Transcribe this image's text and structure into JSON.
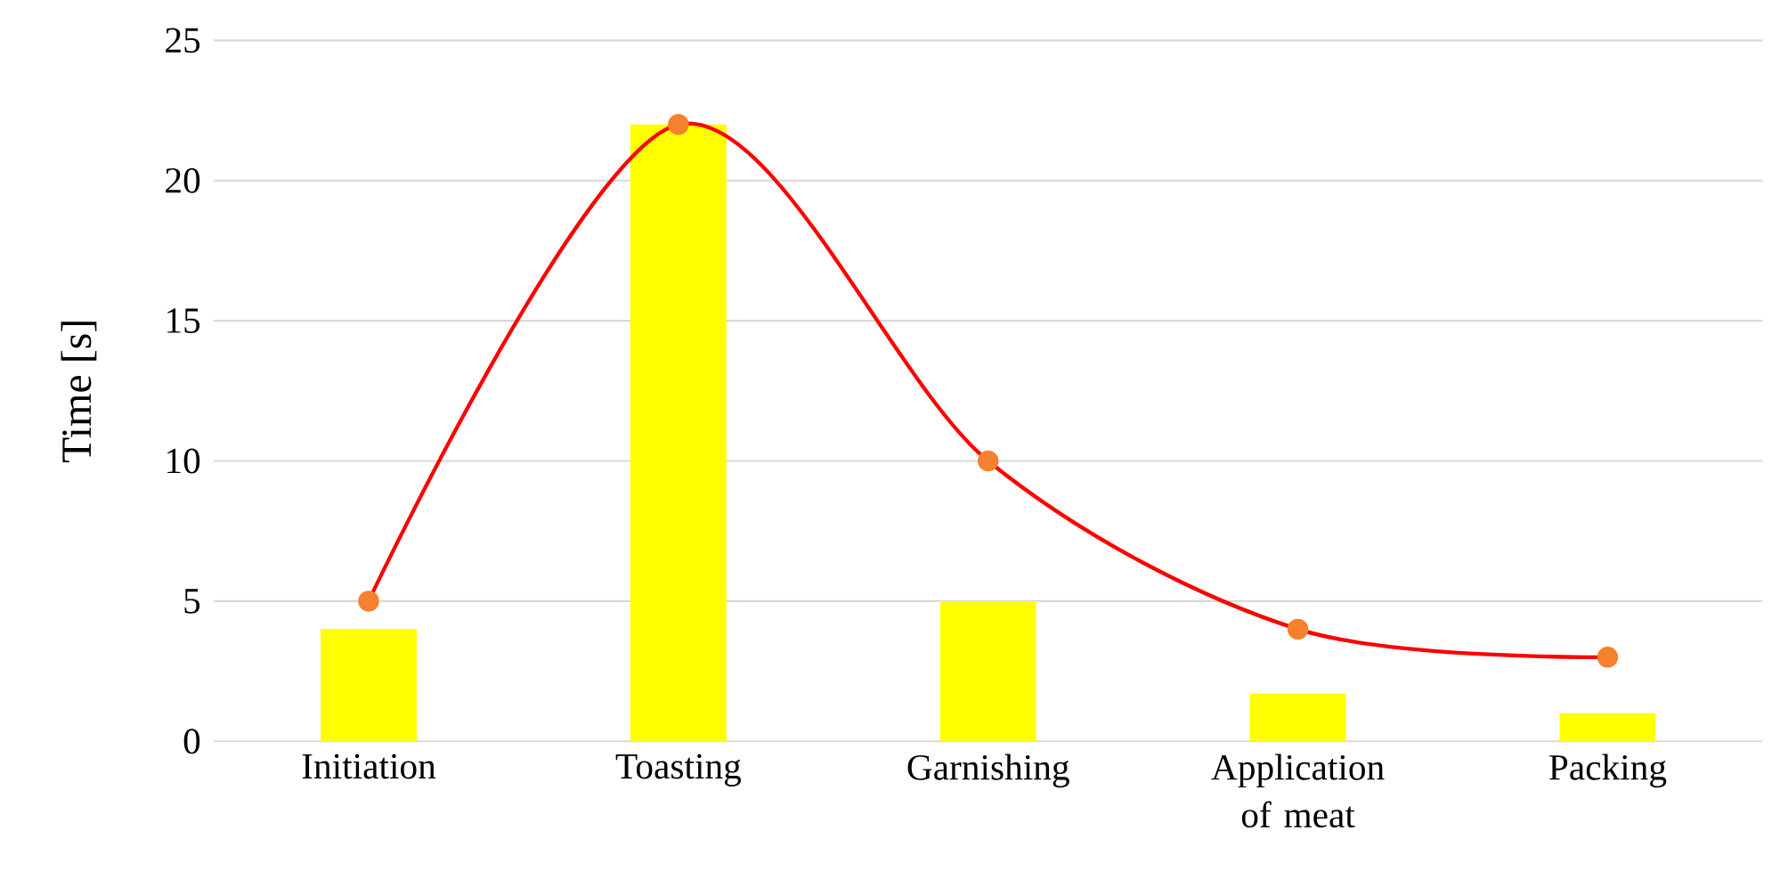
{
  "chart_data": {
    "type": "bar",
    "ylabel": "Time [s]",
    "categories": [
      "Initiation",
      "Toasting",
      "Garnishing",
      "Application of meat",
      "Packing"
    ],
    "series": [
      {
        "color": "#ffff00",
        "values": [
          4,
          22,
          5,
          1.7,
          1
        ]
      },
      {
        "type": "line",
        "color": "#ff0000",
        "marker": "circle",
        "values": [
          5,
          22,
          10,
          4,
          3
        ]
      }
    ],
    "ylim": [
      0,
      25
    ],
    "yticks": [
      0,
      5,
      10,
      15,
      20,
      25
    ],
    "grid": "y"
  }
}
